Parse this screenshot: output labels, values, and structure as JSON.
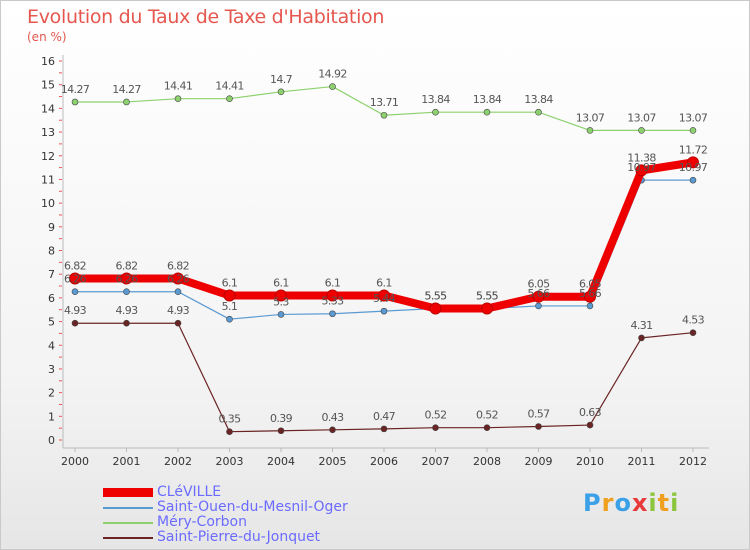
{
  "title": "Evolution du Taux de Taxe d'Habitation",
  "unit_label": "(en %)",
  "brand": [
    "P",
    "r",
    "o",
    "x",
    "i",
    "t",
    "i"
  ],
  "chart_data": {
    "type": "line",
    "x": [
      "2000",
      "2001",
      "2002",
      "2003",
      "2004",
      "2005",
      "2006",
      "2007",
      "2008",
      "2009",
      "2010",
      "2011",
      "2012"
    ],
    "ylim": [
      0,
      16
    ],
    "yticks": [
      "0",
      "1",
      "2",
      "3",
      "4",
      "5",
      "6",
      "7",
      "8",
      "9",
      "10",
      "11",
      "12",
      "13",
      "14",
      "15",
      "16"
    ],
    "grid": false,
    "legend_position": "bottom-left",
    "series": [
      {
        "name": "CLéVILLE",
        "color": "#ee0000",
        "values": [
          6.82,
          6.82,
          6.82,
          6.1,
          6.1,
          6.1,
          6.1,
          5.55,
          5.55,
          6.05,
          6.05,
          11.38,
          11.72
        ],
        "labels": [
          "6.82",
          "6.82",
          "6.82",
          "6.1",
          "6.1",
          "6.1",
          "6.1",
          "5.55",
          "5.55",
          "6.05",
          "6.05",
          "11.38",
          "11.72"
        ]
      },
      {
        "name": "Saint-Ouen-du-Mesnil-Oger",
        "color": "#5a9ad2",
        "values": [
          6.26,
          6.26,
          6.26,
          5.1,
          5.3,
          5.33,
          5.44,
          5.55,
          5.55,
          5.66,
          5.66,
          10.97,
          10.97
        ],
        "labels": [
          "6.26",
          "6.26",
          "6.26",
          "5.1",
          "5.3",
          "5.33",
          "5.44",
          "5.55",
          "5.55",
          "5.66",
          "5.66",
          "10.97",
          "10.97"
        ]
      },
      {
        "name": "Méry-Corbon",
        "color": "#8dd16f",
        "values": [
          14.27,
          14.27,
          14.41,
          14.41,
          14.7,
          14.92,
          13.71,
          13.84,
          13.84,
          13.84,
          13.07,
          13.07,
          13.07
        ],
        "labels": [
          "14.27",
          "14.27",
          "14.41",
          "14.41",
          "14.7",
          "14.92",
          "13.71",
          "13.84",
          "13.84",
          "13.84",
          "13.07",
          "13.07",
          "13.07"
        ]
      },
      {
        "name": "Saint-Pierre-du-Jonquet",
        "color": "#6b2424",
        "values": [
          4.93,
          4.93,
          4.93,
          0.35,
          0.39,
          0.43,
          0.47,
          0.52,
          0.52,
          0.57,
          0.63,
          4.31,
          4.53
        ],
        "labels": [
          "4.93",
          "4.93",
          "4.93",
          "0.35",
          "0.39",
          "0.43",
          "0.47",
          "0.52",
          "0.52",
          "0.57",
          "0.63",
          "4.31",
          "4.53"
        ]
      }
    ]
  }
}
